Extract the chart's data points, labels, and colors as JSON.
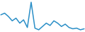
{
  "x": [
    0,
    1,
    2,
    3,
    4,
    5,
    6,
    7,
    8,
    9,
    10,
    11,
    12,
    13,
    14,
    15,
    16,
    17,
    18,
    19,
    20,
    21,
    22
  ],
  "y": [
    5.0,
    5.5,
    4.5,
    3.2,
    4.0,
    2.5,
    3.5,
    1.2,
    8.8,
    1.0,
    0.5,
    1.5,
    2.5,
    1.8,
    3.2,
    2.5,
    1.5,
    2.2,
    1.2,
    0.8,
    1.0,
    0.5,
    0.8
  ],
  "line_color": "#2b8fc7",
  "linewidth": 1.1,
  "background_color": "#ffffff"
}
